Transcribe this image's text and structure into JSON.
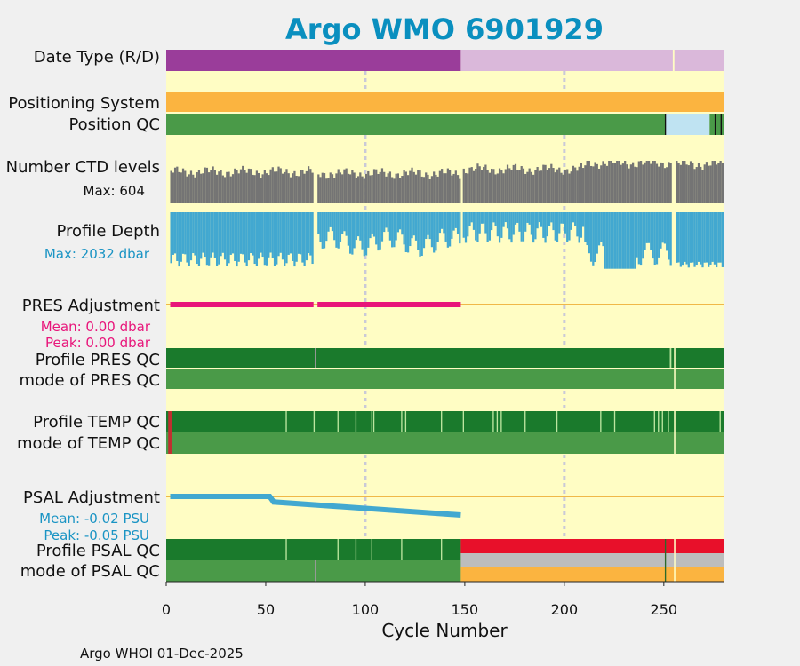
{
  "chart_data": {
    "type": "table",
    "title": "Argo WMO 6901929",
    "xlabel": "Cycle Number",
    "xlim": [
      0,
      280
    ],
    "xticks": [
      "0",
      "50",
      "100",
      "150",
      "200",
      "250"
    ],
    "xtick_values": [
      0,
      50,
      100,
      150,
      200,
      250
    ],
    "footer": "Argo WHOI 01-Dec-2025",
    "rows": {
      "date_type": "Date Type (R/D)",
      "positioning_system": "Positioning System",
      "position_qc": "Position QC",
      "ctd_levels": "Number CTD levels",
      "ctd_max": "Max: 604",
      "profile_depth": "Profile Depth",
      "depth_max": "Max: 2032 dbar",
      "pres_adjustment": "PRES Adjustment",
      "pres_mean": "Mean: 0.00 dbar",
      "pres_peak": "Peak: 0.00 dbar",
      "profile_pres_qc": "Profile PRES QC",
      "mode_pres_qc": "mode of PRES QC",
      "profile_temp_qc": "Profile TEMP QC",
      "mode_temp_qc": "mode of TEMP QC",
      "psal_adjustment": "PSAL Adjustment",
      "psal_mean": "Mean: -0.02 PSU",
      "psal_peak": "Peak: -0.05 PSU",
      "profile_psal_qc": "Profile PSAL QC",
      "mode_psal_qc": "mode of PSAL QC"
    },
    "date_type_segments": [
      {
        "from": 0,
        "to": 148,
        "code": "R"
      },
      {
        "from": 148,
        "to": 280,
        "code": "D"
      }
    ],
    "ctd_levels_max": 604,
    "depth_max_dbar": 2032,
    "pres_adjustment_dbar": {
      "from": 2,
      "to": 148,
      "value": 0.0
    },
    "psal_adjustment_psu": [
      {
        "cycle": 2,
        "value": 0.0
      },
      {
        "cycle": 52,
        "value": 0.0
      },
      {
        "cycle": 54,
        "value": -0.015
      },
      {
        "cycle": 148,
        "value": -0.05
      }
    ],
    "colors": {
      "title": "#0a8fbf",
      "background": "#fffdc4",
      "realtime": "#9a3d9a",
      "delayed": "#dab8da",
      "positioning": "#fbb440",
      "qc_good": "#4a9a48",
      "qc_profile_a": "#1a7a2c",
      "qc_bad": "#e8102a",
      "qc_missing": "#bdbdbd",
      "ctd": "#747474",
      "depth": "#42a8d0",
      "pres_adj": "#e8157a",
      "psal_adj": "#42a8d0",
      "psal_mean_text": "#1a94c4",
      "depth_text": "#1a94c4"
    }
  }
}
